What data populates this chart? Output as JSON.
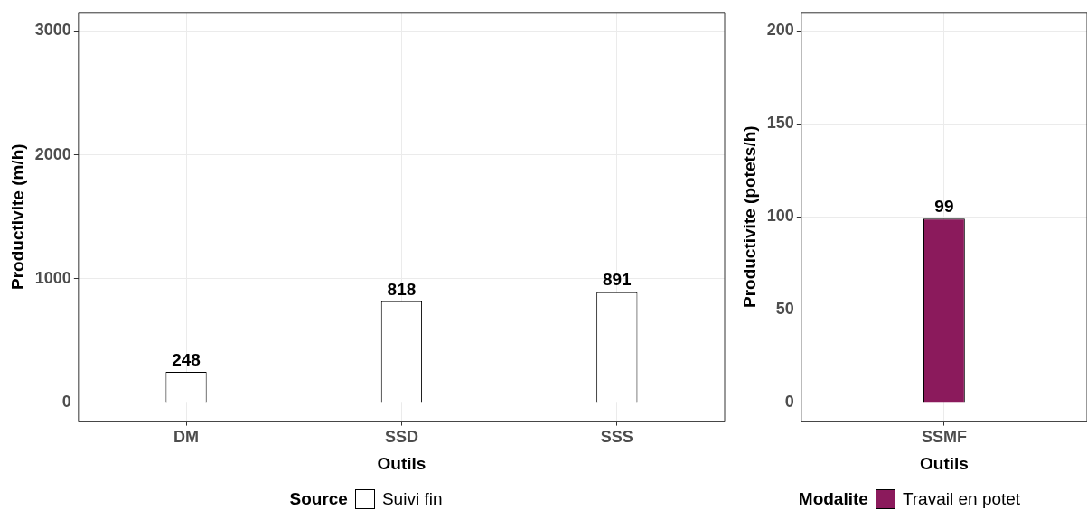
{
  "chart_data": [
    {
      "type": "bar",
      "xlabel": "Outils",
      "ylabel": "Productivite (m/h)",
      "categories": [
        "DM",
        "SSD",
        "SSS"
      ],
      "series": [
        {
          "name": "Suivi fin",
          "color": "#ffffff",
          "values": [
            248,
            818,
            891
          ]
        }
      ],
      "ylim": [
        -150,
        3150
      ],
      "yticks": [
        0,
        1000,
        2000,
        3000
      ],
      "grid": true,
      "data_labels": true,
      "legend": "bottom",
      "legend_title": "Source"
    },
    {
      "type": "bar",
      "xlabel": "Outils",
      "ylabel": "Productivite (potets/h)",
      "categories": [
        "SSMF"
      ],
      "series": [
        {
          "name": "Travail en potet",
          "color": "#8b1a5c",
          "values": [
            99
          ]
        }
      ],
      "ylim": [
        -10,
        210
      ],
      "yticks": [
        0,
        50,
        100,
        150,
        200
      ],
      "grid": true,
      "data_labels": true,
      "legend": "bottom",
      "legend_title": "Modalite"
    }
  ]
}
